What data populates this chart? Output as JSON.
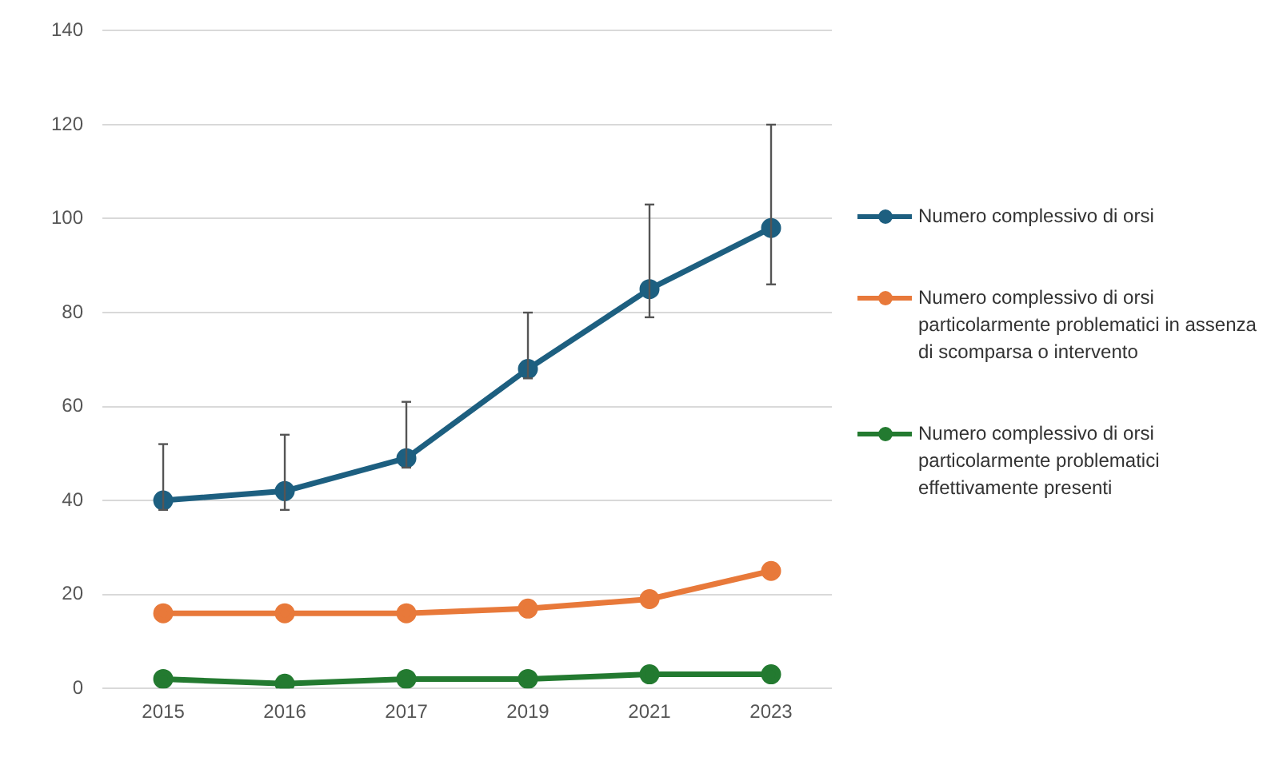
{
  "chart_data": {
    "type": "line",
    "categories": [
      "2015",
      "2016",
      "2017",
      "2019",
      "2021",
      "2023"
    ],
    "series": [
      {
        "name": "Numero complessivo di orsi",
        "color": "#1d5f80",
        "values": [
          40,
          42,
          49,
          68,
          85,
          98
        ],
        "errors": [
          [
            38,
            52
          ],
          [
            38,
            54
          ],
          [
            47,
            61
          ],
          [
            66,
            80
          ],
          [
            79,
            103
          ],
          [
            86,
            120
          ]
        ]
      },
      {
        "name": "Numero complessivo di orsi particolarmente problematici in assenza di scomparsa o intervento",
        "color": "#e8793a",
        "values": [
          16,
          16,
          16,
          17,
          19,
          25
        ]
      },
      {
        "name": "Numero complessivo di orsi particolarmente problematici effettivamente presenti",
        "color": "#237a30",
        "values": [
          2,
          1,
          2,
          2,
          3,
          3
        ]
      }
    ],
    "ylim": [
      0,
      140
    ],
    "yticks": [
      0,
      20,
      40,
      60,
      80,
      100,
      120,
      140
    ],
    "grid": "y",
    "legend": "right",
    "marker": "circle",
    "line_style": "solid"
  }
}
